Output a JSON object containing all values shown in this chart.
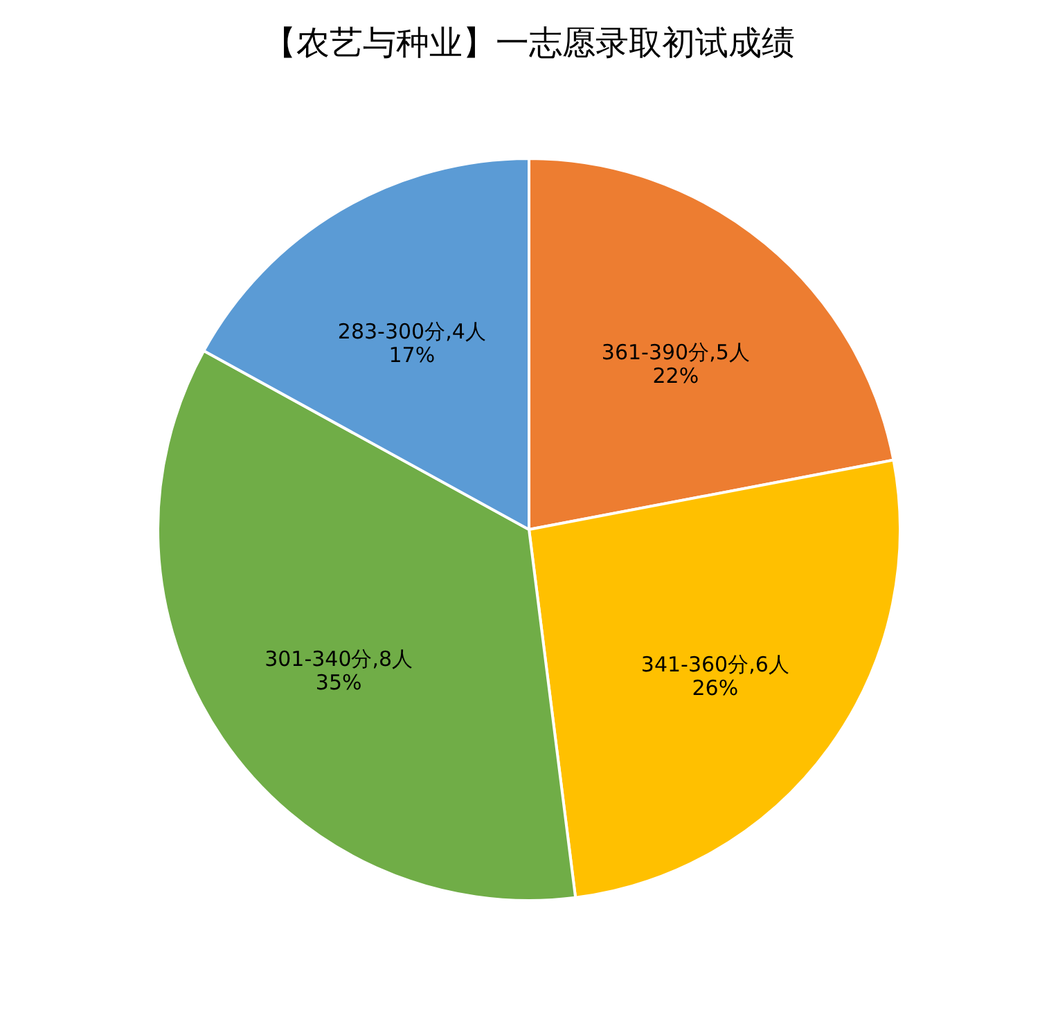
{
  "chart_data": {
    "type": "pie",
    "title": "【农艺与种业】一志愿录取初试成绩",
    "categories": [
      "361-390分,5人",
      "341-360分,6人",
      "301-340分,8人",
      "283-300分,4人"
    ],
    "values": [
      22,
      26,
      35,
      17
    ],
    "value_labels": [
      "22%",
      "26%",
      "35%",
      "17%"
    ],
    "colors": [
      "#ed7d31",
      "#ffc000",
      "#70ad47",
      "#5b9bd5"
    ],
    "legend": false
  }
}
